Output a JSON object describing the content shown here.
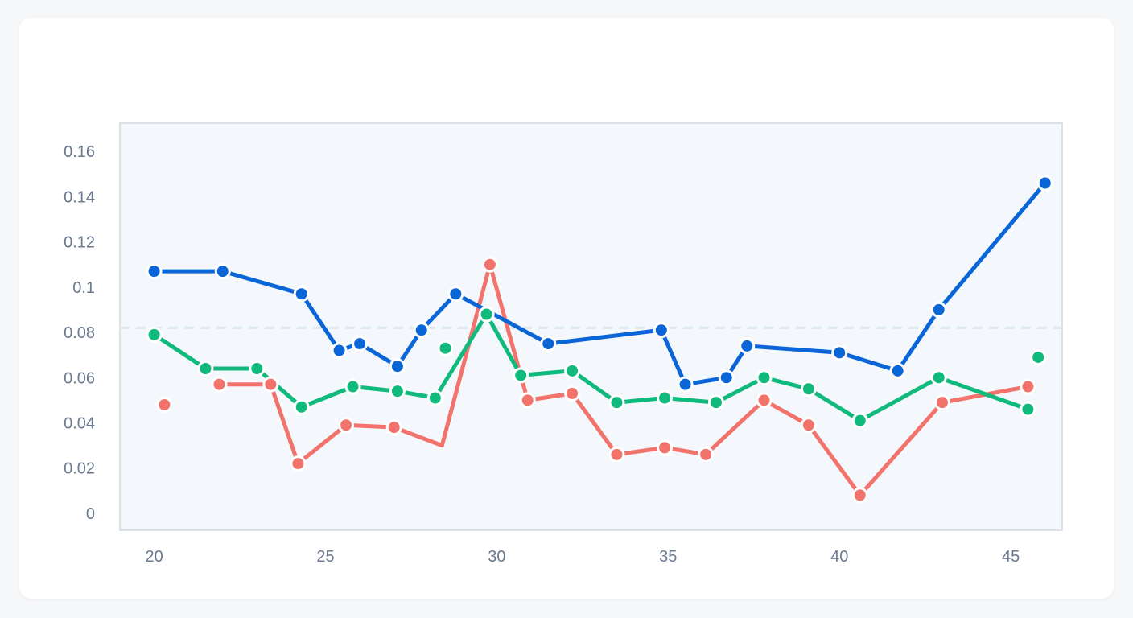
{
  "chart_data": {
    "type": "line",
    "title": "",
    "xlabel": "",
    "ylabel": "",
    "xlim": [
      19,
      46.5
    ],
    "ylim": [
      -0.0075,
      0.1725
    ],
    "x_ticks": [
      20,
      25,
      30,
      35,
      40,
      45
    ],
    "y_ticks": [
      0,
      0.02,
      0.04,
      0.06,
      0.08,
      0.1,
      0.12,
      0.14,
      0.16
    ],
    "y_tick_labels": [
      "0",
      "0.02",
      "0.04",
      "0.06",
      "0.08",
      "0.1",
      "0.12",
      "0.14",
      "0.16"
    ],
    "reference_line": {
      "y": 0.082,
      "style": "dashed",
      "color": "#dde8ec"
    },
    "grid": false,
    "colors": {
      "plot_bg": "#f4f7fc",
      "plot_border": "#d3d8e0",
      "tick_text": "#6b7a90"
    },
    "series": [
      {
        "color": "#0a66d6",
        "segments": [
          [
            [
              20.0,
              0.107
            ],
            [
              22.0,
              0.107
            ],
            [
              24.3,
              0.097
            ],
            [
              25.4,
              0.072
            ],
            [
              26.0,
              0.075
            ],
            [
              27.1,
              0.065
            ],
            [
              27.8,
              0.081
            ],
            [
              28.8,
              0.097
            ],
            [
              31.5,
              0.075
            ],
            [
              34.8,
              0.081
            ],
            [
              35.5,
              0.057
            ],
            [
              36.7,
              0.06
            ],
            [
              37.3,
              0.074
            ],
            [
              40.0,
              0.071
            ],
            [
              41.7,
              0.063
            ],
            [
              42.9,
              0.09
            ],
            [
              46.0,
              0.146
            ]
          ]
        ],
        "isolated_points": []
      },
      {
        "color": "#10b97c",
        "segments": [
          [
            [
              20.0,
              0.079
            ],
            [
              21.5,
              0.064
            ],
            [
              23.0,
              0.064
            ],
            [
              24.3,
              0.047
            ],
            [
              25.8,
              0.056
            ],
            [
              27.1,
              0.054
            ],
            [
              28.2,
              0.051
            ],
            [
              29.7,
              0.088
            ],
            [
              30.7,
              0.061
            ],
            [
              32.2,
              0.063
            ],
            [
              33.5,
              0.049
            ],
            [
              34.9,
              0.051
            ],
            [
              36.4,
              0.049
            ],
            [
              37.8,
              0.06
            ],
            [
              39.1,
              0.055
            ],
            [
              40.6,
              0.041
            ],
            [
              42.9,
              0.06
            ],
            [
              45.5,
              0.046
            ]
          ]
        ],
        "isolated_points": [
          [
            28.5,
            0.073
          ],
          [
            45.8,
            0.069
          ]
        ]
      },
      {
        "color": "#f1736b",
        "segments": [
          [
            [
              21.9,
              0.057
            ],
            [
              23.4,
              0.057
            ],
            [
              24.2,
              0.022
            ],
            [
              25.6,
              0.039
            ],
            [
              27.0,
              0.038
            ],
            [
              28.4,
              0.03
            ],
            [
              29.8,
              0.11
            ],
            [
              30.9,
              0.05
            ],
            [
              32.2,
              0.053
            ],
            [
              33.5,
              0.026
            ],
            [
              34.9,
              0.029
            ],
            [
              36.1,
              0.026
            ],
            [
              37.8,
              0.05
            ],
            [
              39.1,
              0.039
            ],
            [
              40.6,
              0.008
            ],
            [
              43.0,
              0.049
            ],
            [
              45.5,
              0.056
            ]
          ]
        ],
        "isolated_points": [
          [
            20.3,
            0.048
          ]
        ],
        "hidden_marker_x": [
          28.4
        ]
      }
    ]
  }
}
